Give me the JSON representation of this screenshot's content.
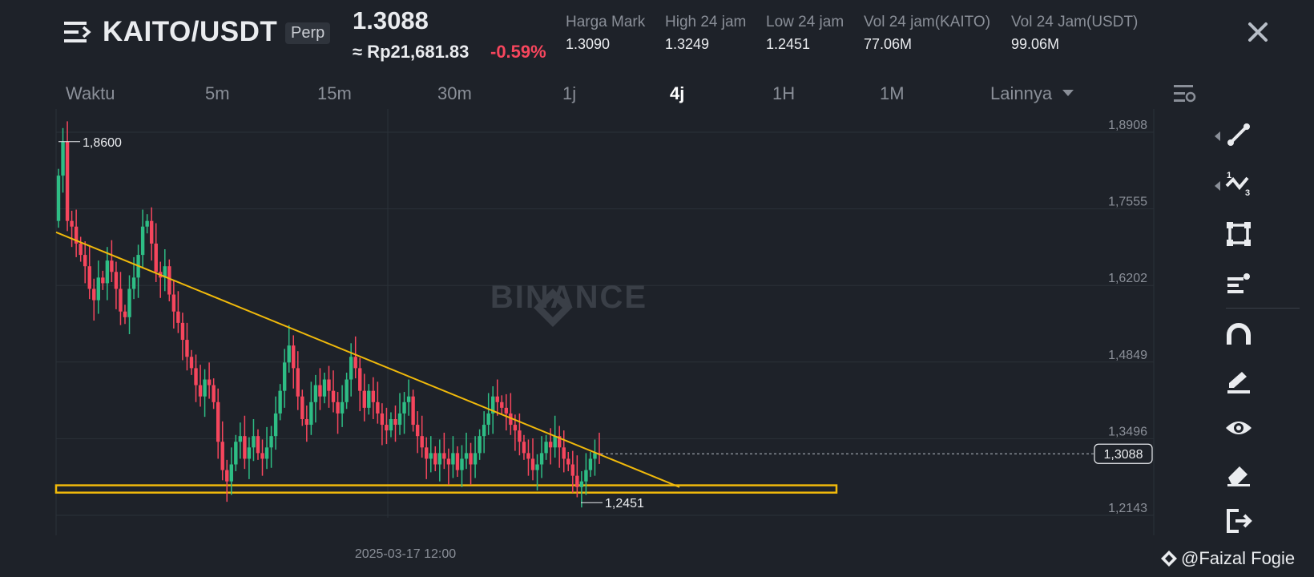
{
  "header": {
    "pair": "KAITO/USDT",
    "badge": "Perp",
    "last_price": "1.3088",
    "fiat_price": "≈ Rp21,681.83",
    "change": "-0.59%",
    "stats": [
      {
        "label": "Harga Mark",
        "value": "1.3090"
      },
      {
        "label": "High 24 jam",
        "value": "1.3249"
      },
      {
        "label": "Low 24 jam",
        "value": "1.2451"
      },
      {
        "label": "Vol 24 jam(KAITO)",
        "value": "77.06M"
      },
      {
        "label": "Vol 24 Jam(USDT)",
        "value": "99.06M"
      }
    ]
  },
  "timeframes": {
    "items": [
      "Waktu",
      "5m",
      "15m",
      "30m",
      "1j",
      "4j",
      "1H",
      "1M",
      "Lainnya"
    ],
    "active": "4j"
  },
  "chart_data": {
    "type": "candlestick",
    "watermark": "BINANCE",
    "y_ticks": [
      "1,8908",
      "1,7555",
      "1,6202",
      "1,4849",
      "1,3496",
      "1,2143"
    ],
    "y_values": [
      1.8908,
      1.7555,
      1.6202,
      1.4849,
      1.3496,
      1.2143
    ],
    "x_tick": "2025-03-17 12:00",
    "high_label": "1,8600",
    "high_value": 1.86,
    "low_label": "1,2451",
    "low_value": 1.2451,
    "last_label": "1,3088",
    "last_value": 1.3088,
    "trendline": {
      "from": 1.7,
      "to": 1.25
    },
    "support_zone": [
      1.2402,
      1.2531
    ],
    "closes": [
      1.8,
      1.86,
      1.72,
      1.71,
      1.68,
      1.66,
      1.64,
      1.6,
      1.58,
      1.62,
      1.61,
      1.65,
      1.63,
      1.6,
      1.56,
      1.55,
      1.6,
      1.62,
      1.66,
      1.71,
      1.72,
      1.68,
      1.63,
      1.62,
      1.64,
      1.59,
      1.56,
      1.54,
      1.51,
      1.48,
      1.46,
      1.43,
      1.41,
      1.44,
      1.43,
      1.4,
      1.33,
      1.28,
      1.26,
      1.29,
      1.33,
      1.34,
      1.3,
      1.32,
      1.34,
      1.31,
      1.3,
      1.32,
      1.34,
      1.38,
      1.42,
      1.47,
      1.5,
      1.46,
      1.41,
      1.37,
      1.36,
      1.4,
      1.43,
      1.41,
      1.44,
      1.42,
      1.4,
      1.38,
      1.4,
      1.44,
      1.48,
      1.46,
      1.42,
      1.39,
      1.42,
      1.4,
      1.38,
      1.36,
      1.35,
      1.37,
      1.36,
      1.38,
      1.4,
      1.41,
      1.36,
      1.34,
      1.32,
      1.3,
      1.31,
      1.29,
      1.31,
      1.3,
      1.29,
      1.31,
      1.28,
      1.3,
      1.31,
      1.29,
      1.31,
      1.34,
      1.36,
      1.38,
      1.41,
      1.4,
      1.39,
      1.38,
      1.36,
      1.35,
      1.33,
      1.31,
      1.3,
      1.28,
      1.29,
      1.31,
      1.33,
      1.32,
      1.34,
      1.32,
      1.3,
      1.29,
      1.27,
      1.25,
      1.26,
      1.28,
      1.3,
      1.31,
      1.3088
    ]
  },
  "toolbar": {
    "icons": [
      "trendline-icon",
      "fib-icon",
      "rectangle-icon",
      "text-icon",
      "magnet-icon",
      "pencil-icon",
      "eye-icon",
      "eraser-icon",
      "exit-icon"
    ]
  },
  "watermark_credit": "@Faizal Fogie",
  "colors": {
    "background": "#1e2229",
    "up": "#2ebd85",
    "down": "#f6465d",
    "trendline": "#f0b90b",
    "grid": "#2b3139"
  }
}
